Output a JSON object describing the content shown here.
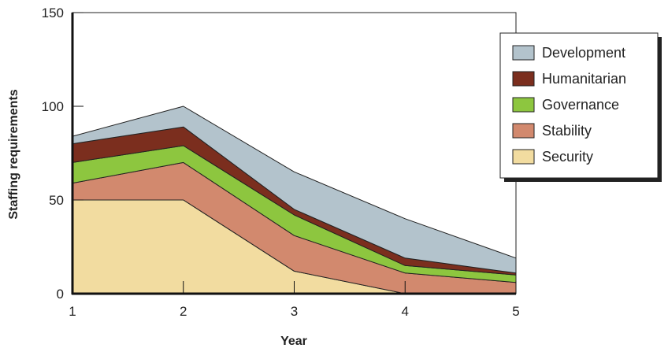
{
  "chart_data": {
    "type": "area",
    "stacked": true,
    "title": "",
    "xlabel": "Year",
    "ylabel": "Staffing requirements",
    "x": [
      1,
      2,
      3,
      4,
      5
    ],
    "xlim": [
      1,
      5
    ],
    "ylim": [
      0,
      150
    ],
    "yticks": [
      0,
      50,
      100,
      150
    ],
    "grid": false,
    "legend_position": "top-right",
    "series": [
      {
        "name": "Security",
        "color": "#f2dca0",
        "values": [
          50,
          50,
          12,
          0,
          0
        ]
      },
      {
        "name": "Stability",
        "color": "#d2896e",
        "values": [
          9,
          20,
          19,
          11,
          6
        ]
      },
      {
        "name": "Governance",
        "color": "#8dc63f",
        "values": [
          11,
          9,
          11,
          4,
          4
        ]
      },
      {
        "name": "Humanitarian",
        "color": "#7b2e1e",
        "values": [
          10,
          10,
          3,
          4,
          1
        ]
      },
      {
        "name": "Development",
        "color": "#b3c3cc",
        "values": [
          4,
          11,
          20,
          21,
          8
        ]
      }
    ],
    "legend_order": [
      "Development",
      "Humanitarian",
      "Governance",
      "Stability",
      "Security"
    ]
  }
}
